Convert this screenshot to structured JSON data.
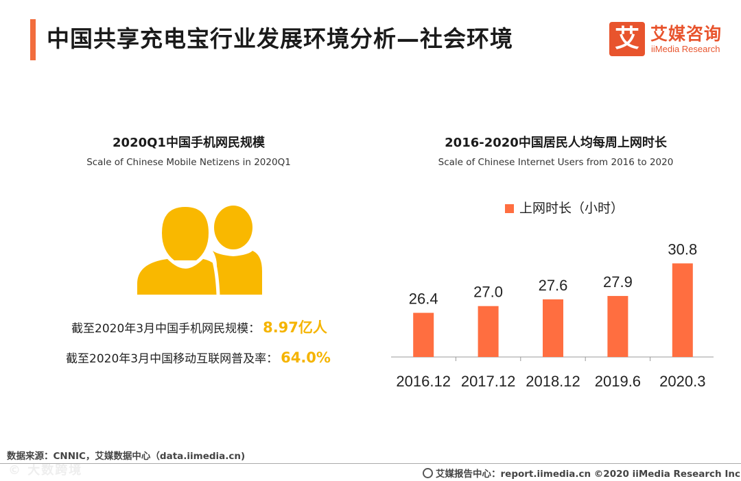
{
  "header": {
    "title": "中国共享充电宝行业发展环境分析—社会环境"
  },
  "logo": {
    "mark": "艾",
    "cn": "艾媒咨询",
    "en": "iiMedia Research"
  },
  "left_panel": {
    "title": "2020Q1中国手机网民规模",
    "subtitle": "Scale of Chinese Mobile Netizens in 2020Q1",
    "icon": "people-icon",
    "icon_color": "#f9b800",
    "stats": [
      {
        "label": "截至2020年3月中国手机网民规模：",
        "value": "8.97亿人"
      },
      {
        "label": "截至2020年3月中国移动互联网普及率：",
        "value": "64.0%"
      }
    ]
  },
  "right_panel": {
    "title": "2016-2020中国居民人均每周上网时长",
    "subtitle": "Scale of Chinese Internet Users from 2016 to 2020"
  },
  "chart_data": {
    "type": "bar",
    "categories": [
      "2016.12",
      "2017.12",
      "2018.12",
      "2019.6",
      "2020.3"
    ],
    "series": [
      {
        "name": "上网时长（小时）",
        "values": [
          26.4,
          27.0,
          27.6,
          27.9,
          30.8
        ],
        "color": "#ff6e40"
      }
    ],
    "value_labels": [
      "26.4",
      "27.0",
      "27.6",
      "27.9",
      "30.8"
    ],
    "legend_position": "top-center",
    "grid": false
  },
  "footer": {
    "source": "数据来源：CNNIC，艾媒数据中心（data.iimedia.cn)",
    "watermark": "© 大数跨境",
    "report": "艾媒报告中心：report.iimedia.cn   ©2020  iiMedia Research  Inc"
  }
}
